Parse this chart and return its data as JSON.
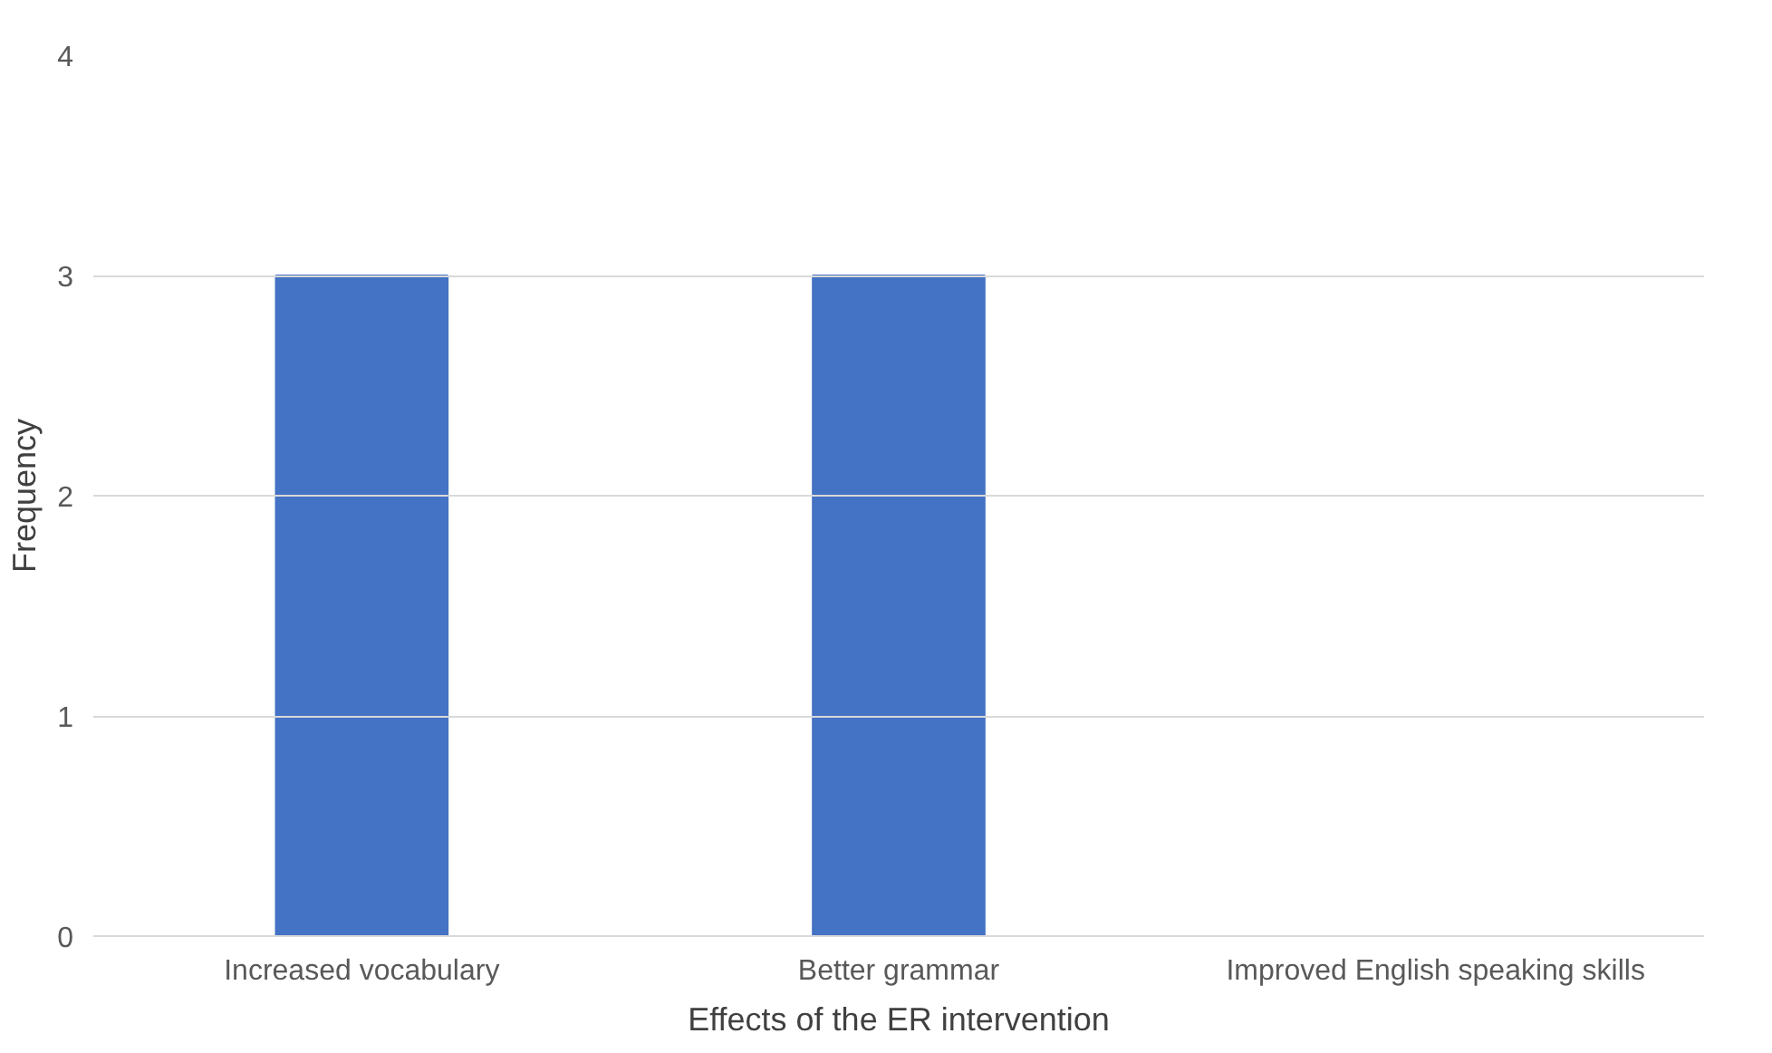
{
  "chart_data": {
    "type": "bar",
    "xlabel": "Effects of the ER intervention",
    "ylabel": "Frequency",
    "categories": [
      "Increased vocabulary",
      "Better grammar",
      "Improved English speaking skills"
    ],
    "values": [
      3,
      3,
      0
    ],
    "color": "#4472c4",
    "ylim": [
      0,
      4
    ],
    "yticks": [
      0,
      1,
      2,
      3,
      4
    ],
    "grid": "y"
  }
}
